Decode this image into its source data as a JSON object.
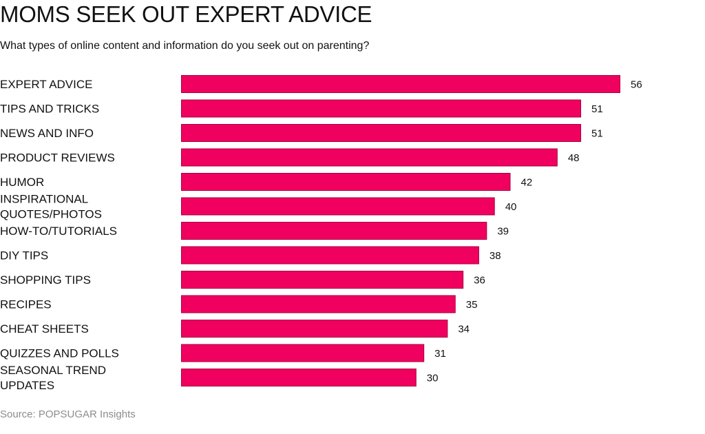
{
  "chart_data": {
    "type": "bar",
    "orientation": "horizontal",
    "title": "MOMS SEEK OUT EXPERT ADVICE",
    "subtitle": "What types of online content and information do you seek out on parenting?",
    "source": "Source: POPSUGAR Insights",
    "categories": [
      [
        "EXPERT ADVICE"
      ],
      [
        "TIPS AND TRICKS"
      ],
      [
        "NEWS AND INFO"
      ],
      [
        "PRODUCT REVIEWS"
      ],
      [
        "HUMOR"
      ],
      [
        "INSPIRATIONAL",
        "QUOTES/PHOTOS"
      ],
      [
        "HOW-TO/TUTORIALS"
      ],
      [
        "DIY TIPS"
      ],
      [
        "SHOPPING TIPS"
      ],
      [
        "RECIPES"
      ],
      [
        "CHEAT SHEETS"
      ],
      [
        "QUIZZES AND POLLS"
      ],
      [
        "SEASONAL TREND",
        "UPDATES"
      ]
    ],
    "values": [
      56,
      51,
      51,
      48,
      42,
      40,
      39,
      38,
      36,
      35,
      34,
      31,
      30
    ],
    "xlim": [
      0,
      56
    ],
    "grid": false,
    "legend": "none",
    "bar_color": "#f0005f",
    "bar_outline_color": "#a8003f"
  }
}
